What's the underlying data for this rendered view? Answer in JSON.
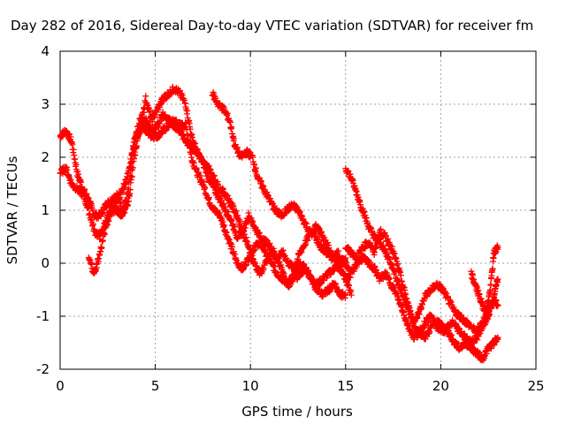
{
  "chart_data": {
    "type": "scatter",
    "title": "Day 282 of 2016, Sidereal Day-to-day VTEC variation (SDTVAR) for receiver fm",
    "xlabel": "GPS time / hours",
    "ylabel": "SDTVAR / TECUs",
    "xlim": [
      0,
      25
    ],
    "ylim": [
      -2,
      4
    ],
    "xticks": [
      "0",
      "5",
      "10",
      "15",
      "20",
      "25"
    ],
    "yticks": [
      "-2",
      "-1",
      "0",
      "1",
      "2",
      "3",
      "4"
    ],
    "grid": true,
    "marker": "plus",
    "series": [
      {
        "color": "#ff0000",
        "x": [
          0.0,
          0.3,
          0.6,
          0.9,
          1.2,
          1.5,
          1.8,
          2.1,
          2.4,
          2.7,
          3.0,
          3.3,
          3.6,
          3.9,
          4.2,
          4.5,
          4.8,
          5.1,
          5.4,
          5.7,
          6.0,
          6.3,
          6.6,
          6.9,
          7.2,
          7.5,
          7.8,
          8.1,
          8.4,
          8.7,
          9.0,
          9.3,
          9.6,
          9.9,
          10.2,
          10.5,
          10.8,
          11.1,
          11.4,
          11.7,
          12.0,
          12.3,
          12.6,
          12.9,
          13.2,
          13.5,
          13.8,
          14.1,
          14.4,
          14.7,
          15.0
        ],
        "y": [
          2.4,
          2.5,
          2.3,
          1.7,
          1.4,
          1.2,
          0.9,
          0.9,
          1.1,
          1.2,
          1.3,
          1.0,
          1.4,
          2.3,
          2.7,
          2.5,
          2.4,
          2.4,
          2.5,
          2.6,
          2.7,
          2.6,
          2.6,
          2.0,
          1.7,
          1.5,
          1.2,
          1.0,
          0.9,
          0.6,
          0.3,
          0.0,
          -0.1,
          0.1,
          0.3,
          0.4,
          0.2,
          0.0,
          -0.2,
          -0.3,
          -0.4,
          -0.3,
          -0.2,
          -0.1,
          -0.3,
          -0.4,
          -0.3,
          -0.2,
          -0.1,
          0.0,
          0.1
        ]
      },
      {
        "color": "#ff0000",
        "x": [
          0.0,
          0.3,
          0.6,
          0.9,
          1.2,
          1.5,
          1.8,
          2.1,
          2.4,
          2.7,
          3.0,
          3.3,
          3.6,
          3.9,
          4.2,
          4.5,
          4.8,
          5.1,
          5.4,
          5.7,
          6.0,
          6.3,
          6.6,
          6.9,
          7.2,
          7.5,
          7.8,
          8.1,
          8.4,
          8.7,
          9.0,
          9.3,
          9.6,
          9.9,
          10.2,
          10.5,
          10.8,
          11.1,
          11.4,
          11.7,
          12.0,
          12.3,
          12.6,
          12.9,
          13.2,
          13.5,
          13.8,
          14.1,
          14.4,
          14.7,
          15.0,
          15.3
        ],
        "y": [
          1.7,
          1.8,
          1.5,
          1.4,
          1.3,
          1.0,
          0.6,
          0.5,
          0.8,
          1.0,
          1.0,
          0.9,
          1.2,
          2.0,
          2.6,
          3.1,
          2.7,
          2.9,
          3.1,
          3.2,
          3.3,
          3.2,
          3.0,
          2.4,
          2.1,
          1.9,
          1.6,
          1.4,
          1.2,
          1.0,
          0.8,
          0.5,
          0.6,
          0.9,
          0.7,
          0.5,
          0.4,
          0.3,
          0.1,
          0.2,
          0.0,
          -0.1,
          0.2,
          0.4,
          0.6,
          0.7,
          0.5,
          0.3,
          0.1,
          -0.1,
          -0.3,
          -0.6
        ]
      },
      {
        "color": "#ff0000",
        "x": [
          1.5,
          1.8,
          2.1,
          2.4,
          2.7,
          3.0,
          3.3,
          3.6,
          3.9,
          4.2,
          4.5,
          4.8,
          5.1,
          5.4,
          5.7,
          6.0,
          6.3,
          6.6,
          6.9,
          7.2,
          7.5,
          7.8,
          8.1,
          8.4,
          8.7,
          9.0,
          9.3,
          9.6,
          9.9,
          10.2,
          10.5,
          10.8,
          11.1,
          11.4,
          11.7,
          12.0,
          12.3,
          12.6,
          12.9,
          13.2,
          13.5,
          13.8,
          14.1,
          14.4,
          14.7,
          15.0
        ],
        "y": [
          0.1,
          -0.2,
          0.2,
          0.7,
          1.0,
          1.2,
          1.4,
          1.7,
          2.3,
          2.5,
          2.7,
          2.5,
          2.6,
          2.8,
          2.7,
          2.6,
          2.5,
          2.3,
          2.2,
          2.1,
          1.9,
          1.8,
          1.6,
          1.4,
          1.3,
          1.1,
          0.9,
          0.6,
          0.3,
          0.0,
          -0.2,
          0.0,
          0.2,
          0.1,
          -0.2,
          -0.4,
          -0.2,
          0.0,
          -0.1,
          -0.3,
          -0.5,
          -0.6,
          -0.5,
          -0.4,
          -0.6,
          -0.6
        ]
      },
      {
        "color": "#ff0000",
        "x": [
          8.0,
          8.3,
          8.6,
          8.9,
          9.2,
          9.5,
          9.8,
          10.1,
          10.4,
          10.7,
          11.0,
          11.3,
          11.6,
          11.9,
          12.2,
          12.5,
          12.8,
          13.1,
          13.4,
          13.7,
          14.0,
          14.3,
          14.6,
          14.9,
          15.2
        ],
        "y": [
          3.2,
          3.0,
          2.9,
          2.7,
          2.2,
          2.0,
          2.1,
          2.0,
          1.6,
          1.4,
          1.2,
          1.0,
          0.9,
          1.0,
          1.1,
          1.0,
          0.8,
          0.6,
          0.5,
          0.3,
          0.2,
          0.1,
          0.2,
          0.0,
          -0.1
        ]
      },
      {
        "color": "#ff0000",
        "x": [
          15.0,
          15.3,
          15.6,
          15.9,
          16.2,
          16.5,
          16.8,
          17.1,
          17.4,
          17.7,
          18.0,
          18.3,
          18.6,
          18.9,
          19.2,
          19.5,
          19.8,
          20.1,
          20.4,
          20.7,
          21.0,
          21.3,
          21.6,
          21.9,
          22.2,
          22.5,
          22.8,
          23.0
        ],
        "y": [
          1.8,
          1.6,
          1.3,
          1.0,
          0.7,
          0.5,
          0.4,
          0.2,
          0.0,
          -0.3,
          -0.6,
          -0.9,
          -1.1,
          -0.9,
          -0.6,
          -0.5,
          -0.4,
          -0.5,
          -0.7,
          -0.9,
          -1.0,
          -1.1,
          -1.2,
          -1.3,
          -1.1,
          -0.9,
          -0.7,
          -0.8
        ]
      },
      {
        "color": "#ff0000",
        "x": [
          15.0,
          15.3,
          15.6,
          15.9,
          16.2,
          16.5,
          16.8,
          17.1,
          17.4,
          17.7,
          18.0,
          18.3,
          18.6,
          18.9,
          19.2,
          19.5,
          19.8,
          20.1,
          20.4,
          20.7,
          21.0,
          21.3,
          21.6,
          21.9,
          22.2,
          22.5,
          22.8,
          23.0
        ],
        "y": [
          0.3,
          0.2,
          0.1,
          0.3,
          0.4,
          0.2,
          0.6,
          0.5,
          0.3,
          0.0,
          -0.4,
          -0.8,
          -1.2,
          -1.3,
          -1.4,
          -1.2,
          -1.1,
          -1.2,
          -1.3,
          -1.5,
          -1.6,
          -1.5,
          -1.6,
          -1.7,
          -1.8,
          -1.6,
          -1.5,
          -1.4
        ]
      },
      {
        "color": "#ff0000",
        "x": [
          15.0,
          15.3,
          15.6,
          15.9,
          16.2,
          16.5,
          16.8,
          17.1,
          17.4,
          17.7,
          18.0,
          18.3,
          18.6,
          18.9,
          19.2,
          19.5,
          19.8,
          20.1,
          20.4,
          20.7,
          21.0,
          21.3,
          21.6,
          21.9,
          22.2,
          22.5,
          22.8,
          23.0
        ],
        "y": [
          -0.3,
          -0.2,
          0.0,
          0.1,
          0.0,
          -0.1,
          -0.3,
          -0.2,
          -0.4,
          -0.6,
          -0.9,
          -1.2,
          -1.4,
          -1.3,
          -1.1,
          -1.0,
          -1.2,
          -1.3,
          -1.2,
          -1.1,
          -1.3,
          -1.4,
          -1.5,
          -1.4,
          -1.2,
          -1.0,
          -0.6,
          -0.3
        ]
      },
      {
        "color": "#ff0000",
        "x": [
          21.6,
          21.8,
          22.0,
          22.2,
          22.4,
          22.6,
          22.8,
          23.0
        ],
        "y": [
          -0.2,
          -0.4,
          -0.6,
          -0.8,
          -0.9,
          -0.5,
          0.2,
          0.3
        ]
      }
    ]
  }
}
